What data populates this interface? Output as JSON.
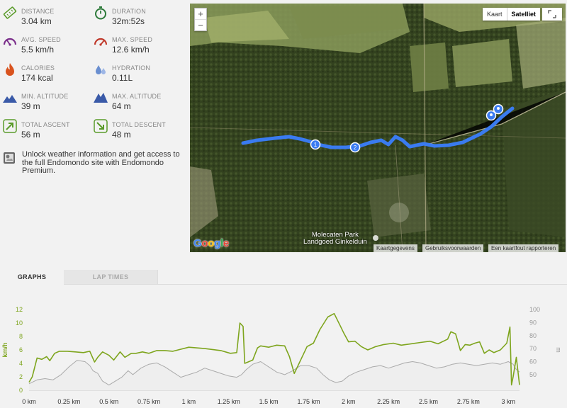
{
  "stats": [
    {
      "id": "distance",
      "label": "DISTANCE",
      "value": "3.04 km",
      "icon": "ruler-icon"
    },
    {
      "id": "duration",
      "label": "DURATION",
      "value": "32m:52s",
      "icon": "stopwatch-icon"
    },
    {
      "id": "avg-speed",
      "label": "AVG. SPEED",
      "value": "5.5 km/h",
      "icon": "speedometer-icon"
    },
    {
      "id": "max-speed",
      "label": "MAX. SPEED",
      "value": "12.6 km/h",
      "icon": "speedometer-max-icon"
    },
    {
      "id": "calories",
      "label": "CALORIES",
      "value": "174 kcal",
      "icon": "flame-icon"
    },
    {
      "id": "hydration",
      "label": "HYDRATION",
      "value": "0.11L",
      "icon": "water-drops-icon"
    },
    {
      "id": "min-altitude",
      "label": "MIN. ALTITUDE",
      "value": "39 m",
      "icon": "mountain-low-icon"
    },
    {
      "id": "max-altitude",
      "label": "MAX. ALTITUDE",
      "value": "64 m",
      "icon": "mountain-high-icon"
    },
    {
      "id": "total-ascent",
      "label": "TOTAL ASCENT",
      "value": "56 m",
      "icon": "arrow-up-right-icon"
    },
    {
      "id": "total-descent",
      "label": "TOTAL DESCENT",
      "value": "48 m",
      "icon": "arrow-down-right-icon"
    }
  ],
  "promo": {
    "text": "Unlock weather information and get access to the full Endomondo site with Endomondo Premium.",
    "icon": "weather-widget-icon"
  },
  "map": {
    "zoom_in": "+",
    "zoom_out": "−",
    "type_map": "Kaart",
    "type_satellite": "Satelliet",
    "logo": [
      "G",
      "o",
      "o",
      "g",
      "l",
      "e"
    ],
    "place_line1": "Molecaten Park",
    "place_line2": "Landgoed Ginkelduin",
    "attrib_data": "Kaartgegevens",
    "attrib_terms": "Gebruiksvoorwaarden",
    "attrib_report": "Een kaartfout rapporteren",
    "marker_1": "1",
    "marker_2": "2",
    "route_color": "#3a7bf0"
  },
  "tabs": {
    "graphs": "GRAPHS",
    "lap_times": "LAP TIMES"
  },
  "chart_data": {
    "type": "line",
    "xlabel": "",
    "x_ticks": [
      "0 km",
      "0.25 km",
      "0.5 km",
      "0.75 km",
      "1 km",
      "1.25 km",
      "1.5 km",
      "1.75 km",
      "2 km",
      "2.25 km",
      "2.5 km",
      "2.75 km",
      "3 km"
    ],
    "xlim": [
      0,
      3.07
    ],
    "y_left": {
      "label": "km/h",
      "ticks": [
        "0",
        "2",
        "4",
        "6",
        "8",
        "10",
        "12"
      ],
      "lim": [
        0,
        12
      ]
    },
    "y_right": {
      "label": "m",
      "ticks": [
        "50",
        "60",
        "70",
        "80",
        "90",
        "100"
      ],
      "lim": [
        38,
        100
      ]
    },
    "series": [
      {
        "id": "speed",
        "axis": "left",
        "color": "#7ea51e",
        "x": [
          0.0,
          0.02,
          0.05,
          0.08,
          0.11,
          0.13,
          0.16,
          0.19,
          0.24,
          0.29,
          0.34,
          0.38,
          0.41,
          0.43,
          0.46,
          0.5,
          0.53,
          0.57,
          0.6,
          0.64,
          0.67,
          0.71,
          0.75,
          0.8,
          0.85,
          0.9,
          1.0,
          1.1,
          1.2,
          1.26,
          1.3,
          1.32,
          1.34,
          1.35,
          1.37,
          1.4,
          1.43,
          1.45,
          1.5,
          1.55,
          1.6,
          1.63,
          1.66,
          1.7,
          1.74,
          1.78,
          1.82,
          1.87,
          1.91,
          1.95,
          1.97,
          2.0,
          2.04,
          2.08,
          2.12,
          2.17,
          2.22,
          2.28,
          2.33,
          2.39,
          2.45,
          2.51,
          2.56,
          2.62,
          2.64,
          2.67,
          2.7,
          2.73,
          2.76,
          2.79,
          2.82,
          2.85,
          2.88,
          2.91,
          2.95,
          2.99,
          3.01,
          3.02,
          3.03,
          3.05,
          3.07
        ],
        "values": [
          1.2,
          2.0,
          4.8,
          4.6,
          5.0,
          4.4,
          5.5,
          5.8,
          5.8,
          5.7,
          5.6,
          5.8,
          4.2,
          4.9,
          5.7,
          5.2,
          4.5,
          5.7,
          4.9,
          5.5,
          5.5,
          5.7,
          5.5,
          5.9,
          5.9,
          5.8,
          6.4,
          6.2,
          5.9,
          5.5,
          5.6,
          10.0,
          9.5,
          4.0,
          4.2,
          4.5,
          6.3,
          6.6,
          6.4,
          6.7,
          6.6,
          5.0,
          2.5,
          4.5,
          6.5,
          7.0,
          9.0,
          10.9,
          11.4,
          9.5,
          8.5,
          7.2,
          7.3,
          6.5,
          6.0,
          6.5,
          6.8,
          7.0,
          6.7,
          6.9,
          7.1,
          7.3,
          6.9,
          7.6,
          8.7,
          8.4,
          5.9,
          6.8,
          6.7,
          7.0,
          7.2,
          5.5,
          6.0,
          5.6,
          6.0,
          7.0,
          9.4,
          0.8,
          2.0,
          4.9,
          0.8
        ]
      },
      {
        "id": "altitude",
        "axis": "right",
        "color": "#aaaaaa",
        "fill": "#eeeeee",
        "x": [
          0.0,
          0.05,
          0.1,
          0.15,
          0.2,
          0.25,
          0.3,
          0.35,
          0.38,
          0.4,
          0.43,
          0.46,
          0.5,
          0.54,
          0.58,
          0.62,
          0.65,
          0.7,
          0.75,
          0.8,
          0.85,
          0.9,
          0.95,
          1.0,
          1.05,
          1.1,
          1.15,
          1.2,
          1.25,
          1.3,
          1.33,
          1.36,
          1.4,
          1.45,
          1.5,
          1.55,
          1.6,
          1.65,
          1.7,
          1.75,
          1.8,
          1.84,
          1.88,
          1.92,
          1.96,
          2.0,
          2.05,
          2.1,
          2.15,
          2.2,
          2.25,
          2.3,
          2.35,
          2.4,
          2.45,
          2.5,
          2.55,
          2.6,
          2.65,
          2.7,
          2.75,
          2.8,
          2.85,
          2.9,
          2.95,
          3.0,
          3.03,
          3.05,
          3.07
        ],
        "values": [
          43,
          46,
          47,
          46,
          50,
          56,
          61,
          60,
          57,
          53,
          51,
          45,
          42,
          45,
          48,
          53,
          50,
          55,
          58,
          59,
          56,
          52,
          48,
          50,
          52,
          55,
          53,
          51,
          49,
          48,
          50,
          54,
          58,
          60,
          56,
          52,
          50,
          53,
          57,
          57,
          55,
          50,
          46,
          44,
          45,
          49,
          52,
          54,
          56,
          57,
          55,
          57,
          59,
          60,
          59,
          57,
          55,
          56,
          58,
          59,
          58,
          57,
          58,
          59,
          58,
          60,
          58,
          54,
          52
        ]
      }
    ]
  }
}
